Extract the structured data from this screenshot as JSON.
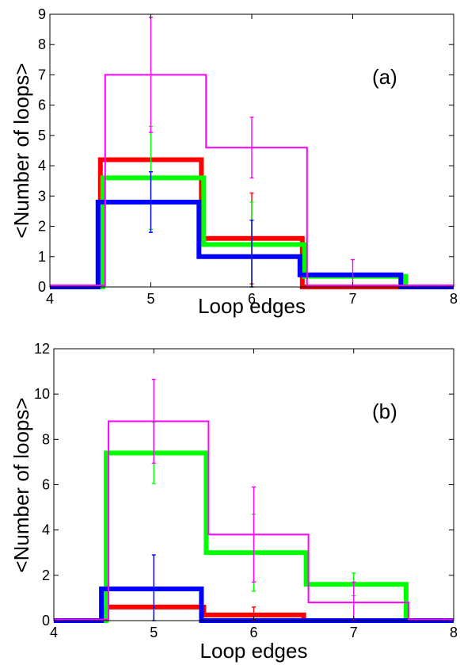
{
  "chart_data": [
    {
      "type": "line",
      "panel_label": "(a)",
      "xlabel": "Loop edges",
      "ylabel": "<Number of loops>",
      "xlim": [
        4,
        8
      ],
      "ylim": [
        0,
        9
      ],
      "x_ticks": [
        4,
        5,
        6,
        7,
        8
      ],
      "y_ticks": [
        0,
        1,
        2,
        3,
        4,
        5,
        6,
        7,
        8,
        9
      ],
      "grid": false,
      "legend": "none",
      "x": [
        4,
        5,
        6,
        7,
        8
      ],
      "series": [
        {
          "color": "#ff0000",
          "line": "thick",
          "values": [
            0,
            4.2,
            1.6,
            0,
            0
          ],
          "errors": [
            0,
            0,
            1.5,
            0,
            0
          ]
        },
        {
          "color": "#00ff00",
          "line": "thick",
          "values": [
            0,
            3.6,
            1.4,
            0.35,
            0
          ],
          "errors": [
            0,
            1.7,
            1.4,
            0,
            0
          ]
        },
        {
          "color": "#0000ff",
          "line": "thick",
          "values": [
            0,
            2.8,
            1.0,
            0.4,
            0
          ],
          "errors": [
            0,
            1.0,
            1.2,
            0,
            0
          ]
        },
        {
          "color": "#ff00ff",
          "line": "thin",
          "values": [
            0.05,
            7.0,
            4.6,
            0.05,
            0.05
          ],
          "errors": [
            0,
            1.9,
            1.0,
            0.85,
            0
          ]
        }
      ]
    },
    {
      "type": "line",
      "panel_label": "(b)",
      "xlabel": "Loop edges",
      "ylabel": "<Number of loops>",
      "xlim": [
        4,
        8
      ],
      "ylim": [
        0,
        12
      ],
      "x_ticks": [
        4,
        5,
        6,
        7,
        8
      ],
      "y_ticks": [
        0,
        2,
        4,
        6,
        8,
        10,
        12
      ],
      "grid": false,
      "legend": "none",
      "x": [
        4,
        5,
        6,
        7,
        8
      ],
      "series": [
        {
          "color": "#ff0000",
          "line": "thick",
          "values": [
            0,
            0.6,
            0.25,
            0,
            0
          ],
          "errors": [
            0,
            0,
            0.35,
            0,
            0
          ]
        },
        {
          "color": "#00ff00",
          "line": "thick",
          "values": [
            0,
            7.4,
            3.0,
            1.6,
            0
          ],
          "errors": [
            0,
            1.35,
            1.7,
            0.5,
            0
          ]
        },
        {
          "color": "#0000ff",
          "line": "thick",
          "values": [
            0,
            1.4,
            0.0,
            0.0,
            0
          ],
          "errors": [
            0,
            1.5,
            0,
            0,
            0
          ]
        },
        {
          "color": "#ff00ff",
          "line": "thin",
          "values": [
            0.05,
            8.8,
            3.8,
            0.8,
            0.05
          ],
          "errors": [
            0,
            1.85,
            2.1,
            0.9,
            0
          ]
        }
      ]
    }
  ]
}
